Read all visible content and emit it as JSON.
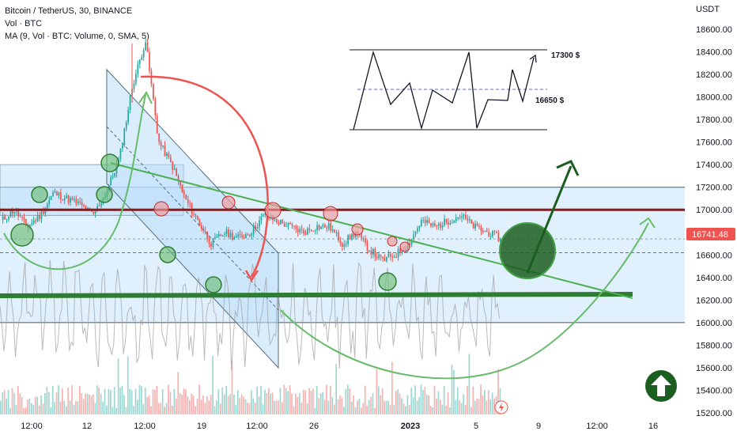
{
  "legend": {
    "symbol_line": "Bitcoin / TetherUS, 30, BINANCE",
    "volume_line": "Vol · BTC",
    "ma_line": "MA (9, Vol · BTC: Volume, 0, SMA, 5)"
  },
  "price_axis": {
    "currency": "USDT",
    "ticks": [
      "18600.00",
      "18400.00",
      "18200.00",
      "18000.00",
      "17800.00",
      "17600.00",
      "17400.00",
      "17200.00",
      "17000.00",
      "16800.00",
      "16600.00",
      "16400.00",
      "16200.00",
      "16000.00",
      "15800.00",
      "15600.00",
      "15400.00",
      "15200.00"
    ],
    "last_price_label": "16741.48",
    "last_price_color": "#ef5350"
  },
  "time_axis": {
    "ticks": [
      "12:00",
      "12",
      "12:00",
      "19",
      "12:00",
      "26",
      "2023",
      "5",
      "9",
      "12:00",
      "16"
    ]
  },
  "annotations": {
    "upper_level": "17300 $",
    "lower_level": "16650 $"
  },
  "colors": {
    "up": "#26a69a",
    "down": "#ef5350",
    "zone_fill": "#bbdefb",
    "trendline": "#4caf50",
    "support": "#2e7d32",
    "resistance": "#7b1f1f",
    "arc_red": "#ef5350",
    "arc_green": "#66bb6a",
    "arrow_dark": "#1b5e20",
    "big_circle": "#1b5e20",
    "badge": "#1b5e20"
  },
  "icons": {
    "badge": "up-arrow-circle-icon",
    "alert": "lightning-icon"
  },
  "chart_data": {
    "type": "candlestick",
    "title": "Bitcoin / TetherUS, 30, BINANCE",
    "xlabel": "",
    "ylabel": "USDT",
    "ylim": [
      15100,
      18800
    ],
    "grid": false,
    "last_price": 16741.48,
    "support_level": 16200,
    "resistance_level": 17000,
    "zone_upper": 17200,
    "zone_lower": 16000,
    "keypoints_close": [
      16900,
      17000,
      16850,
      16950,
      17150,
      17100,
      17050,
      16950,
      17150,
      17450,
      18100,
      18500,
      17600,
      17400,
      17100,
      16900,
      16700,
      16800,
      16750,
      16800,
      16950,
      16900,
      16850,
      16800,
      16850,
      16850,
      16700,
      16800,
      16650,
      16550,
      16600,
      16700,
      16900,
      16850,
      16900,
      16950,
      16850,
      16800,
      16741.48
    ]
  }
}
